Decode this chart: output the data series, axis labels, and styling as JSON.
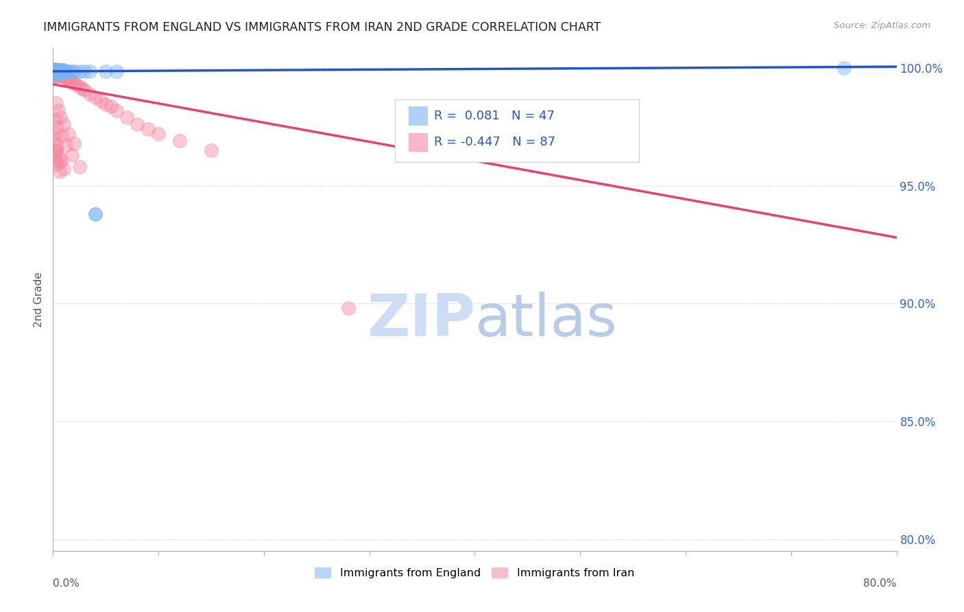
{
  "title": "IMMIGRANTS FROM ENGLAND VS IMMIGRANTS FROM IRAN 2ND GRADE CORRELATION CHART",
  "source": "Source: ZipAtlas.com",
  "ylabel": "2nd Grade",
  "xmin": 0.0,
  "xmax": 0.8,
  "ymin": 0.795,
  "ymax": 1.008,
  "yticks": [
    0.8,
    0.85,
    0.9,
    0.95,
    1.0
  ],
  "ytick_labels": [
    "80.0%",
    "85.0%",
    "90.0%",
    "95.0%",
    "100.0%"
  ],
  "england_R": 0.081,
  "england_N": 47,
  "iran_R": -0.447,
  "iran_N": 87,
  "england_color": "#7ab3f5",
  "iran_color": "#f588a0",
  "england_trend_color": "#2255cc",
  "iran_trend_color": "#e84070",
  "watermark_zip": "ZIP",
  "watermark_atlas": "atlas",
  "watermark_color": "#ccddf5",
  "england_trend_x0": 0.0,
  "england_trend_y0": 0.9985,
  "england_trend_x1": 0.8,
  "england_trend_y1": 1.0005,
  "iran_trend_x0": 0.0,
  "iran_trend_y0": 0.993,
  "iran_trend_x1": 0.8,
  "iran_trend_y1": 0.928,
  "england_scatter_x": [
    0.001,
    0.001,
    0.001,
    0.002,
    0.002,
    0.002,
    0.002,
    0.002,
    0.003,
    0.003,
    0.003,
    0.003,
    0.003,
    0.004,
    0.004,
    0.004,
    0.004,
    0.005,
    0.005,
    0.005,
    0.005,
    0.006,
    0.006,
    0.006,
    0.007,
    0.007,
    0.007,
    0.008,
    0.008,
    0.009,
    0.009,
    0.01,
    0.01,
    0.011,
    0.012,
    0.013,
    0.015,
    0.018,
    0.02,
    0.025,
    0.03,
    0.035,
    0.04,
    0.05,
    0.06,
    0.75,
    0.04
  ],
  "england_scatter_y": [
    0.9995,
    0.9985,
    0.9975,
    0.9995,
    0.9985,
    0.9975,
    0.999,
    0.998,
    0.9995,
    0.9985,
    0.9975,
    0.999,
    0.998,
    0.999,
    0.9985,
    0.998,
    0.9975,
    0.999,
    0.9985,
    0.998,
    0.9975,
    0.999,
    0.9985,
    0.998,
    0.999,
    0.9985,
    0.998,
    0.999,
    0.9985,
    0.999,
    0.9985,
    0.999,
    0.9985,
    0.9985,
    0.9985,
    0.9985,
    0.9985,
    0.9985,
    0.9985,
    0.9985,
    0.9985,
    0.9985,
    0.938,
    0.9985,
    0.9985,
    1.0,
    0.938
  ],
  "iran_scatter_x": [
    0.001,
    0.001,
    0.001,
    0.001,
    0.002,
    0.002,
    0.002,
    0.002,
    0.002,
    0.003,
    0.003,
    0.003,
    0.003,
    0.003,
    0.003,
    0.004,
    0.004,
    0.004,
    0.004,
    0.004,
    0.005,
    0.005,
    0.005,
    0.005,
    0.006,
    0.006,
    0.006,
    0.007,
    0.007,
    0.007,
    0.008,
    0.008,
    0.008,
    0.009,
    0.009,
    0.01,
    0.01,
    0.011,
    0.012,
    0.013,
    0.014,
    0.015,
    0.016,
    0.018,
    0.02,
    0.022,
    0.025,
    0.028,
    0.03,
    0.035,
    0.04,
    0.045,
    0.05,
    0.055,
    0.06,
    0.07,
    0.08,
    0.09,
    0.1,
    0.12,
    0.15,
    0.003,
    0.005,
    0.007,
    0.01,
    0.015,
    0.02,
    0.002,
    0.004,
    0.008,
    0.012,
    0.018,
    0.025,
    0.001,
    0.003,
    0.006,
    0.002,
    0.004,
    0.008,
    0.003,
    0.005,
    0.01,
    0.002,
    0.28,
    0.002,
    0.003,
    0.006
  ],
  "iran_scatter_y": [
    0.999,
    0.9985,
    0.998,
    0.9975,
    0.999,
    0.9985,
    0.998,
    0.9975,
    0.997,
    0.999,
    0.9985,
    0.998,
    0.9975,
    0.997,
    0.9965,
    0.9985,
    0.998,
    0.9975,
    0.997,
    0.9965,
    0.9985,
    0.998,
    0.9975,
    0.997,
    0.998,
    0.9975,
    0.997,
    0.9975,
    0.997,
    0.9965,
    0.9975,
    0.997,
    0.9965,
    0.997,
    0.9965,
    0.9968,
    0.9962,
    0.996,
    0.9958,
    0.9955,
    0.9952,
    0.9948,
    0.9945,
    0.994,
    0.9935,
    0.993,
    0.992,
    0.9912,
    0.9905,
    0.989,
    0.9875,
    0.986,
    0.9845,
    0.9835,
    0.982,
    0.979,
    0.976,
    0.974,
    0.972,
    0.969,
    0.965,
    0.985,
    0.982,
    0.979,
    0.976,
    0.972,
    0.968,
    0.978,
    0.975,
    0.971,
    0.967,
    0.963,
    0.958,
    0.97,
    0.965,
    0.96,
    0.972,
    0.967,
    0.961,
    0.965,
    0.962,
    0.957,
    0.964,
    0.898,
    0.961,
    0.959,
    0.956
  ]
}
